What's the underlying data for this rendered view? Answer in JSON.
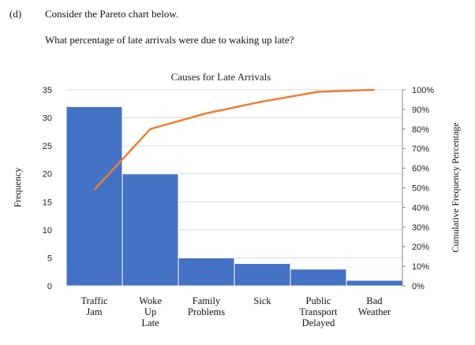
{
  "question": {
    "label": "(d)",
    "line1": "Consider the Pareto chart below.",
    "line2": "What percentage of late arrivals were due to waking up late?"
  },
  "chart_data": {
    "type": "bar",
    "title": "Causes for Late Arrivals",
    "categories": [
      [
        "Traffic",
        "Jam"
      ],
      [
        "Woke",
        "Up",
        "Late"
      ],
      [
        "Family",
        "Problems"
      ],
      [
        "Sick"
      ],
      [
        "Public",
        "Transport",
        "Delayed"
      ],
      [
        "Bad",
        "Weather"
      ]
    ],
    "values": [
      32,
      20,
      5,
      4,
      3,
      1
    ],
    "cumulative_percent": [
      49,
      80,
      88,
      94,
      99,
      100
    ],
    "ylabel": "Frequency",
    "ylabel_right": "Cumulative Frequency Percentage",
    "ylim": [
      0,
      35
    ],
    "yticks": [
      0,
      5,
      10,
      15,
      20,
      25,
      30,
      35
    ],
    "ylim_right": [
      0,
      100
    ],
    "yticks_right": [
      "0%",
      "10%",
      "20%",
      "30%",
      "40%",
      "50%",
      "60%",
      "70%",
      "80%",
      "90%",
      "100%"
    ],
    "grid": true,
    "legend": "none",
    "colors": {
      "bar": "#4472C4",
      "bar_edge": "#ffffff",
      "line": "#ED7D31",
      "grid": "#d9d9d9"
    }
  }
}
